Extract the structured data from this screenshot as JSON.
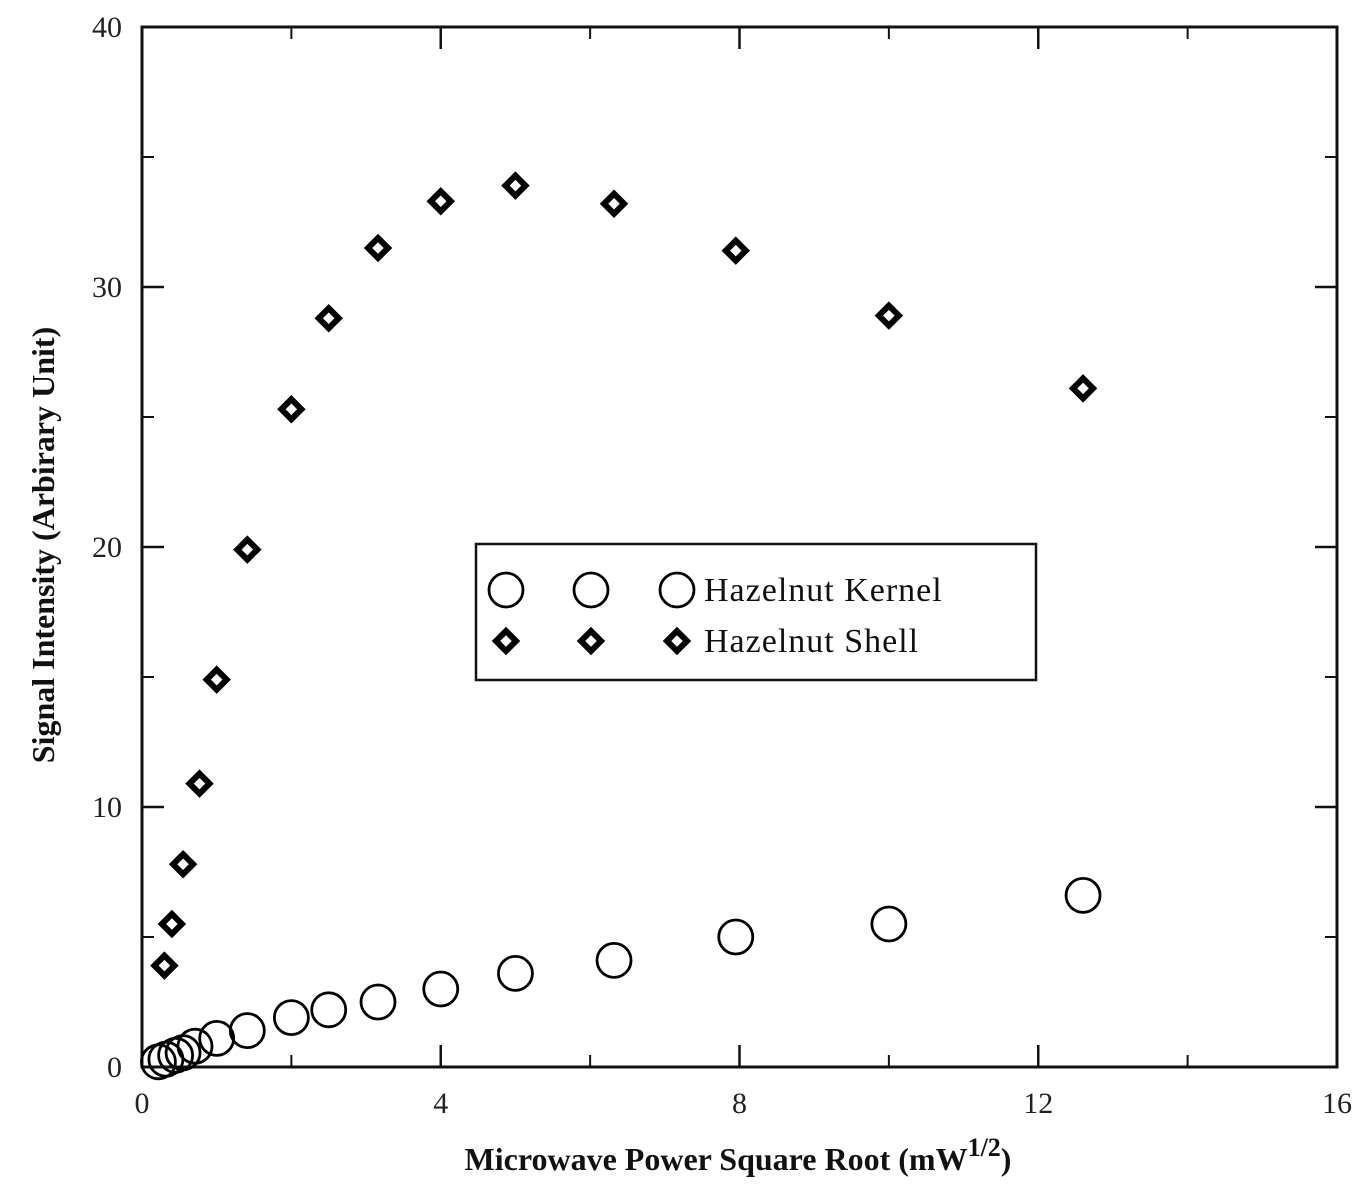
{
  "chart_data": {
    "type": "scatter",
    "title": "",
    "xlabel": "Microwave Power Square Root (mW",
    "xlabel_sup": "1/2",
    "xlabel_close": ")",
    "ylabel": "Signal Intensity (Arbirary Unit)",
    "xlim": [
      0,
      16
    ],
    "ylim": [
      0,
      40
    ],
    "x_ticks": [
      0,
      4,
      8,
      12,
      16
    ],
    "y_ticks": [
      0,
      10,
      20,
      30,
      40
    ],
    "x_minor_ticks": [
      2,
      6,
      10,
      14
    ],
    "y_minor_ticks": [
      5,
      15,
      25,
      35
    ],
    "grid": false,
    "legend_position": "center",
    "series": [
      {
        "name": "Hazelnut Kernel",
        "marker": "open-circle",
        "color": "#000000",
        "x": [
          0.22,
          0.32,
          0.45,
          0.55,
          0.71,
          1.0,
          1.41,
          2.0,
          2.5,
          3.16,
          4.0,
          5.0,
          6.32,
          7.95,
          10.0,
          12.6
        ],
        "y": [
          0.2,
          0.3,
          0.45,
          0.55,
          0.8,
          1.1,
          1.4,
          1.9,
          2.2,
          2.5,
          3.0,
          3.6,
          4.1,
          5.0,
          5.5,
          6.6
        ]
      },
      {
        "name": "Hazelnut Shell",
        "marker": "open-diamond",
        "color": "#000000",
        "x": [
          0.3,
          0.4,
          0.55,
          0.77,
          1.0,
          1.41,
          2.0,
          2.5,
          3.16,
          4.0,
          5.0,
          6.32,
          7.95,
          10.0,
          12.6
        ],
        "y": [
          3.9,
          5.5,
          7.8,
          10.9,
          14.9,
          19.9,
          25.3,
          28.8,
          31.5,
          33.3,
          33.9,
          33.2,
          31.4,
          28.9,
          26.1
        ]
      }
    ]
  }
}
